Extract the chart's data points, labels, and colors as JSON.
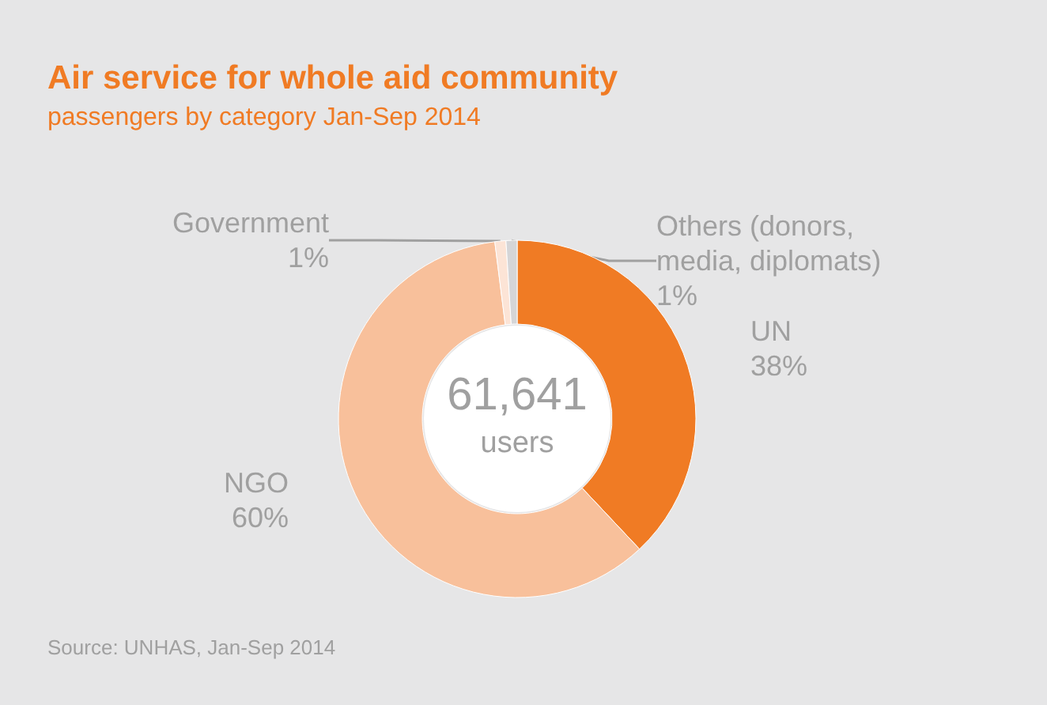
{
  "chart_data": {
    "type": "donut",
    "title": "Air service for whole aid community",
    "subtitle": "passengers by category Jan-Sep 2014",
    "categories": [
      "UN",
      "NGO",
      "Government",
      "Others (donors,\nmedia, diplomats)"
    ],
    "values": [
      38,
      60,
      1,
      1
    ],
    "colors": [
      "#f07b24",
      "#f8c09b",
      "#fce4d6",
      "#d5d5d7"
    ],
    "value_labels": [
      "38%",
      "60%",
      "1%",
      "1%"
    ],
    "annotations": [
      "61,641",
      "users",
      "Source: UNHAS, Jan-Sep 2014"
    ],
    "legend": false
  }
}
